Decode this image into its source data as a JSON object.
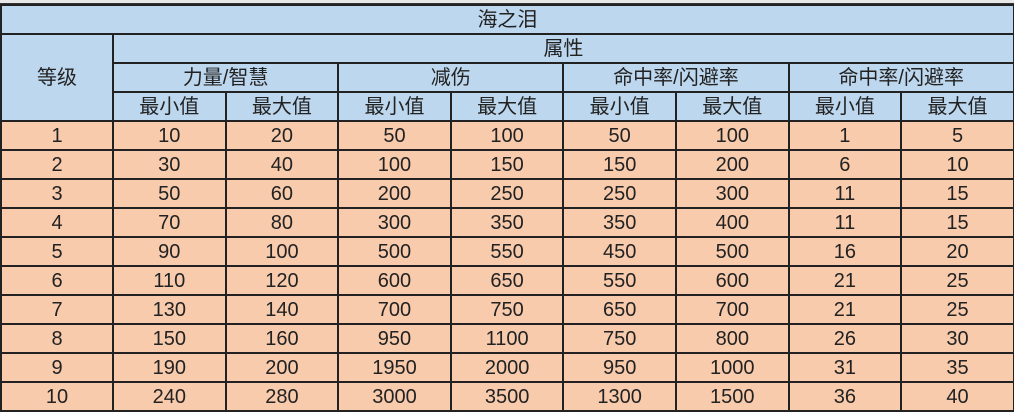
{
  "title": "海之泪",
  "level_header": "等级",
  "group_header": "属性",
  "attributes": [
    "力量/智慧",
    "减伤",
    "命中率/闪避率",
    "命中率/闪避率"
  ],
  "sub_headers": [
    "最小值",
    "最大值"
  ],
  "rows": [
    [
      "1",
      "10",
      "20",
      "50",
      "100",
      "50",
      "100",
      "1",
      "5"
    ],
    [
      "2",
      "30",
      "40",
      "100",
      "150",
      "150",
      "200",
      "6",
      "10"
    ],
    [
      "3",
      "50",
      "60",
      "200",
      "250",
      "250",
      "300",
      "11",
      "15"
    ],
    [
      "4",
      "70",
      "80",
      "300",
      "350",
      "350",
      "400",
      "11",
      "15"
    ],
    [
      "5",
      "90",
      "100",
      "500",
      "550",
      "450",
      "500",
      "16",
      "20"
    ],
    [
      "6",
      "110",
      "120",
      "600",
      "650",
      "550",
      "600",
      "21",
      "25"
    ],
    [
      "7",
      "130",
      "140",
      "700",
      "750",
      "650",
      "700",
      "21",
      "25"
    ],
    [
      "8",
      "150",
      "160",
      "950",
      "1100",
      "750",
      "800",
      "26",
      "30"
    ],
    [
      "9",
      "190",
      "200",
      "1950",
      "2000",
      "950",
      "1000",
      "31",
      "35"
    ],
    [
      "10",
      "240",
      "280",
      "3000",
      "3500",
      "1300",
      "1500",
      "36",
      "40"
    ]
  ],
  "colors": {
    "header": "#bdd7ee",
    "body": "#f8cbad"
  }
}
